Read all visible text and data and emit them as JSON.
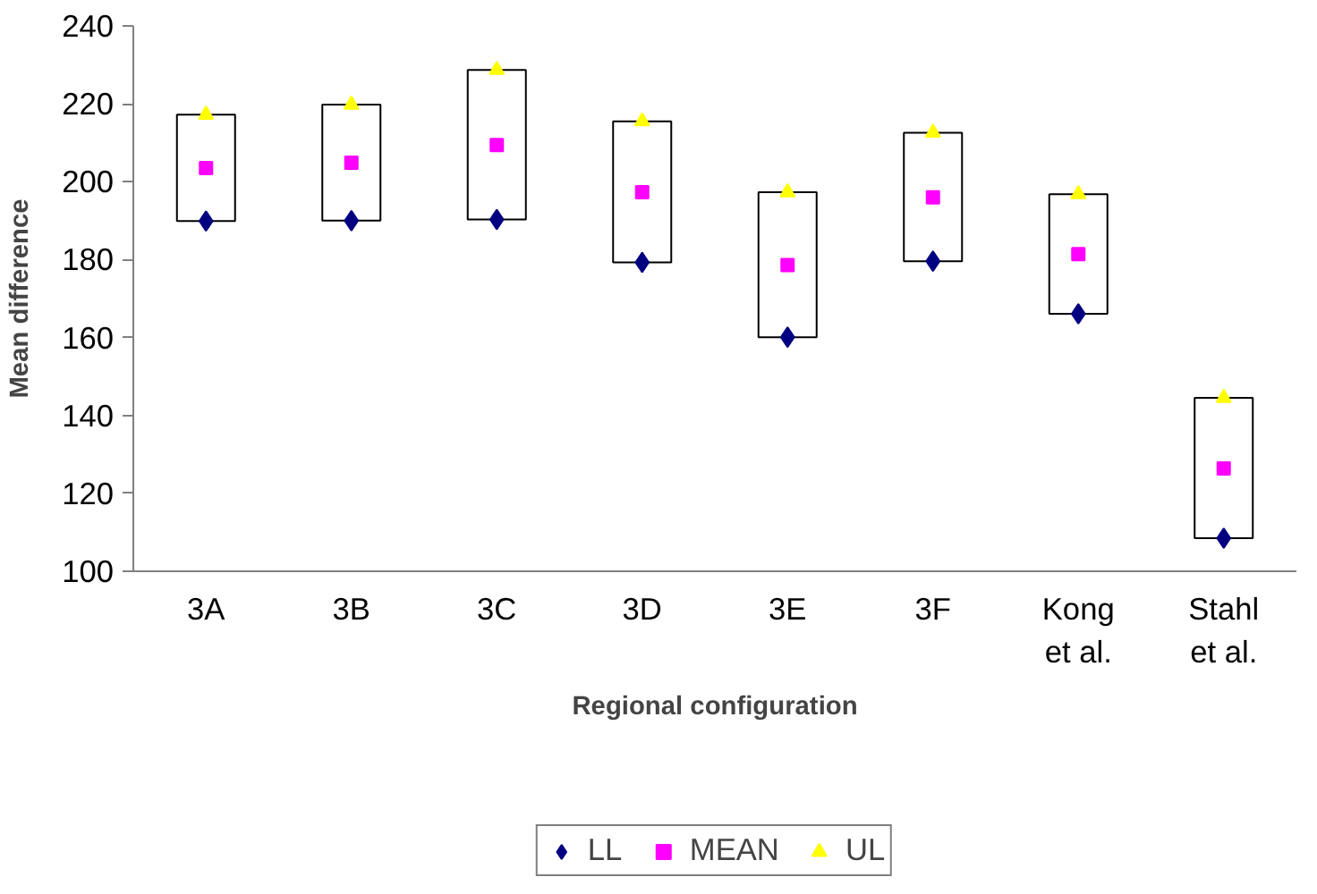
{
  "chart_data": {
    "type": "scatter",
    "xlabel": "Regional configuration",
    "ylabel": "Mean difference",
    "categories": [
      "3A",
      "3B",
      "3C",
      "3D",
      "3E",
      "3F",
      "Kong\net al.",
      "Stahl\net al."
    ],
    "ylim": [
      100,
      240
    ],
    "yticks": [
      100,
      120,
      140,
      160,
      180,
      200,
      220,
      240
    ],
    "grid": false,
    "legend": "bottom",
    "series": [
      {
        "type": "bar",
        "color": "#ffffff",
        "base": [
          189.9,
          190.0,
          190.3,
          179.3,
          160.1,
          179.6,
          166.1,
          108.5
        ],
        "values": [
          27.3,
          29.8,
          38.4,
          36.2,
          37.2,
          33.0,
          30.7,
          36.0
        ]
      },
      {
        "name": "LL",
        "color": "#000080",
        "marker": "diamond",
        "values": [
          189.9,
          190.0,
          190.3,
          179.3,
          160.1,
          179.6,
          166.1,
          108.5
        ]
      },
      {
        "name": "MEAN",
        "color": "#ff00ff",
        "marker": "square",
        "values": [
          203.5,
          204.9,
          209.4,
          197.3,
          178.6,
          196.0,
          181.4,
          126.4
        ]
      },
      {
        "name": "UL",
        "color": "#ffff00",
        "marker": "triangle",
        "values": [
          217.2,
          219.8,
          228.7,
          215.5,
          197.3,
          212.6,
          196.8,
          144.5
        ]
      }
    ]
  }
}
